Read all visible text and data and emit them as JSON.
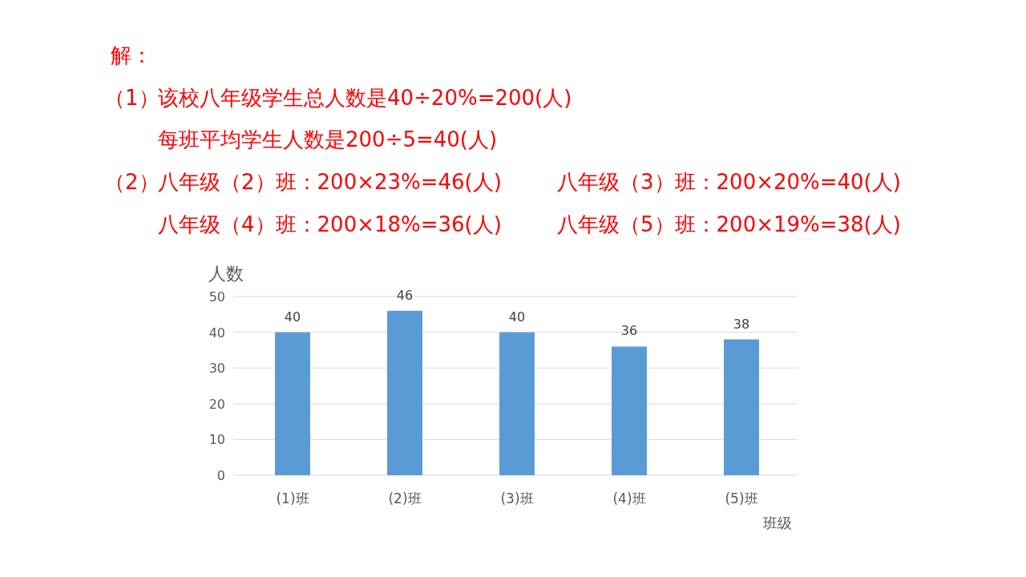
{
  "chart_data": {
    "type": "bar",
    "annotations": [
      "解：",
      "（1）",
      "该校八年级学生总人数是40÷20%=200(人)",
      "每班平均学生人数是200÷5=40(人)",
      "（2）",
      "八年级（2）班：200×23%=46(人)",
      "八年级（3）班：200×20%=40(人)",
      "八年级（4）班：200×18%=36(人)",
      "八年级（5）班：200×19%=38(人)"
    ],
    "ylabel": "人数",
    "xlabel": "班级",
    "categories": [
      "(1)班",
      "(2)班",
      "(3)班",
      "(4)班",
      "(5)班"
    ],
    "values": [
      40,
      46,
      40,
      36,
      38
    ],
    "color": "#5b9bd5",
    "ylim": [
      0,
      50
    ],
    "yticks": [
      0,
      10,
      20,
      30,
      40,
      50
    ],
    "grid": "y",
    "data_labels": true
  }
}
